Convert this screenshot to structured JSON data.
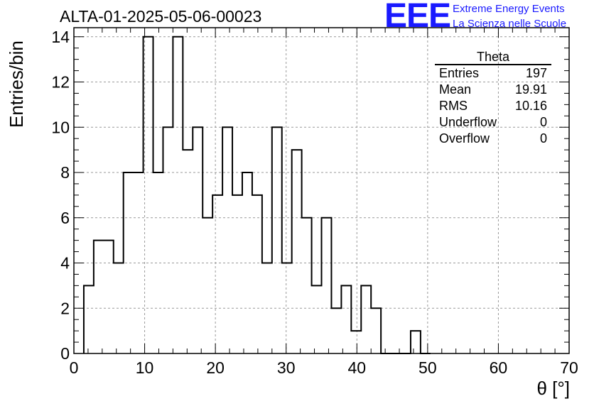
{
  "chart_data": {
    "type": "bar",
    "histogram_title": "ALTA-01-2025-05-06-00023",
    "xlabel": "θ [°]",
    "ylabel": "Entries/bin",
    "xlim": [
      0,
      70
    ],
    "ylim": [
      0,
      14.4
    ],
    "x_ticks": [
      0,
      10,
      20,
      30,
      40,
      50,
      60,
      70
    ],
    "y_ticks": [
      0,
      2,
      4,
      6,
      8,
      10,
      12,
      14
    ],
    "grid": true,
    "bin_edges_start": 1.4,
    "bin_width": 1.4,
    "values": [
      3,
      5,
      5,
      4,
      8,
      8,
      14,
      8,
      10,
      14,
      9,
      10,
      6,
      7,
      10,
      7,
      8,
      7,
      4,
      10,
      4,
      9,
      6,
      3,
      6,
      2,
      3,
      1,
      3,
      2,
      0,
      0,
      0,
      1,
      0
    ]
  },
  "stats_box": {
    "title": "Theta",
    "rows": [
      {
        "label": "Entries",
        "value": "197"
      },
      {
        "label": "Mean",
        "value": "19.91"
      },
      {
        "label": "RMS",
        "value": "10.16"
      },
      {
        "label": "Underflow",
        "value": "0"
      },
      {
        "label": "Overflow",
        "value": "0"
      }
    ]
  },
  "logo": {
    "mark": "EEE",
    "line1": "Extreme Energy Events",
    "line2": "La Scienza nelle Scuole",
    "color": "#1a1aff"
  }
}
